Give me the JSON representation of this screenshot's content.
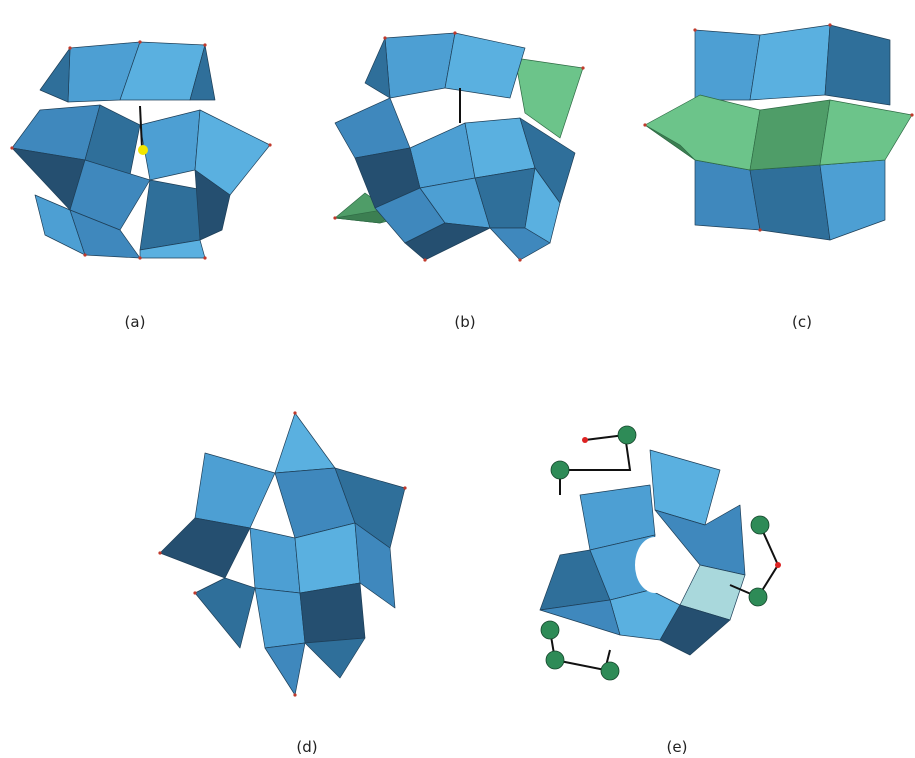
{
  "panels": [
    {
      "id": "a",
      "label": "(a)"
    },
    {
      "id": "b",
      "label": "(b)"
    },
    {
      "id": "c",
      "label": "(c)"
    },
    {
      "id": "d",
      "label": "(d)"
    },
    {
      "id": "e",
      "label": "(e)"
    }
  ],
  "colors": {
    "octahedron_blue": "#4d9fd3",
    "octahedron_blue_dark": "#2f6f9a",
    "octahedron_green": "#6cc48a",
    "central_atom": "#f2e600",
    "metal_sphere": "#2e8b57",
    "oxygen_vertex": "#d22222"
  }
}
